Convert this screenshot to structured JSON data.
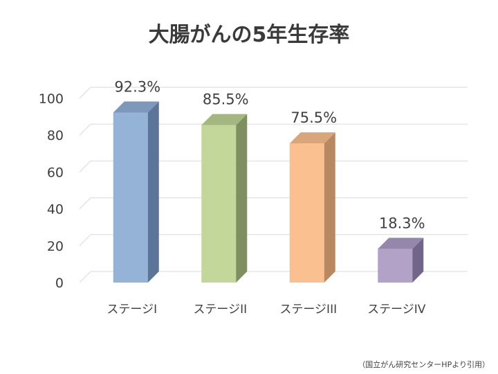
{
  "chart_data": {
    "type": "bar",
    "title": "大腸がんの5年生存率",
    "categories": [
      "ステージI",
      "ステージII",
      "ステージIII",
      "ステージIV"
    ],
    "series": [
      {
        "values": [
          92.3,
          85.5,
          75.5,
          18.3
        ]
      }
    ],
    "data_labels": [
      "92.3%",
      "85.5%",
      "75.5%",
      "18.3%"
    ],
    "yticks": [
      0,
      20,
      40,
      60,
      80,
      100
    ],
    "ylim": [
      0,
      100
    ],
    "grid": true,
    "bar_colors": [
      {
        "front": "#95b3d7",
        "side": "#5b7599",
        "top": "#7e98bc"
      },
      {
        "front": "#c4d79b",
        "side": "#7f8f5f",
        "top": "#a5b781"
      },
      {
        "front": "#fac090",
        "side": "#b88860",
        "top": "#d9a57a"
      },
      {
        "front": "#b2a2c7",
        "side": "#71668a",
        "top": "#9487ab"
      }
    ],
    "source": "（国立がん研究センターHPより引用）"
  }
}
